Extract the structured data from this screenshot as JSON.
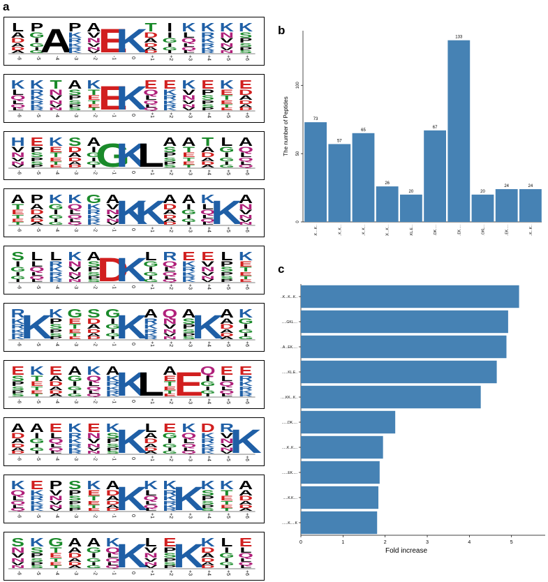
{
  "panels": {
    "a": "a",
    "b": "b",
    "c": "c"
  },
  "logo_positions": [
    "-6",
    "-5",
    "-4",
    "-3",
    "-2",
    "-1",
    "0",
    "+1",
    "+2",
    "+3",
    "+4",
    "+5",
    "+6"
  ],
  "logos": [
    {
      "big": {
        "-1": "E",
        "0": "K",
        "-4": "A"
      },
      "tops": [
        "L",
        "P",
        "A",
        "P",
        "A",
        "E",
        "K",
        "T",
        "I",
        "K",
        "K",
        "K",
        "K"
      ]
    },
    {
      "big": {
        "-1": "E",
        "0": "K"
      },
      "tops": [
        "K",
        "K",
        "T",
        "A",
        "K",
        "E",
        "K",
        "E",
        "E",
        "K",
        "E",
        "K",
        "E"
      ]
    },
    {
      "big": {
        "-1": "G",
        "0": "K",
        "+1": "L"
      },
      "tops": [
        "H",
        "E",
        "K",
        "S",
        "A",
        "G",
        "K",
        "L",
        "A",
        "A",
        "T",
        "L",
        "A"
      ]
    },
    {
      "big": {
        "0": "K",
        "+1": "K",
        "+5": "K"
      },
      "tops": [
        "A",
        "P",
        "K",
        "K",
        "G",
        "A",
        "K",
        "K",
        "A",
        "A",
        "K",
        "K",
        "A"
      ]
    },
    {
      "big": {
        "-1": "D",
        "0": "K"
      },
      "tops": [
        "S",
        "L",
        "L",
        "K",
        "A",
        "D",
        "K",
        "L",
        "R",
        "E",
        "E",
        "L",
        "K"
      ]
    },
    {
      "big": {
        "-5": "K",
        "0": "K",
        "+4": "K"
      },
      "tops": [
        "R",
        "K",
        "K",
        "G",
        "S",
        "G",
        "K",
        "A",
        "Q",
        "A",
        "K",
        "A",
        "K"
      ]
    },
    {
      "big": {
        "0": "K",
        "+1": "L",
        "+3": "E"
      },
      "tops": [
        "E",
        "K",
        "E",
        "A",
        "K",
        "A",
        "K",
        "L",
        "A",
        "E",
        "Q",
        "E",
        "E"
      ]
    },
    {
      "big": {
        "0": "K",
        "+6": "K"
      },
      "tops": [
        "A",
        "A",
        "E",
        "K",
        "E",
        "K",
        "K",
        "L",
        "E",
        "K",
        "D",
        "R",
        "K"
      ]
    },
    {
      "big": {
        "0": "K",
        "+3": "K"
      },
      "tops": [
        "K",
        "E",
        "P",
        "S",
        "K",
        "A",
        "K",
        "K",
        "K",
        "G",
        "K",
        "K",
        "A"
      ]
    },
    {
      "big": {
        "0": "K",
        "+3": "K"
      },
      "tops": [
        "S",
        "K",
        "G",
        "A",
        "A",
        "K",
        "K",
        "L",
        "E",
        "K",
        "K",
        "L",
        "E"
      ]
    }
  ],
  "chart_data": [
    {
      "type": "bar",
      "title": "",
      "xlabel": "",
      "ylabel": "The number of Peptides",
      "categories": [
        "...K....K..",
        "....K..K...",
        "...K..K...",
        "...KK...K...",
        ".....KL.E...",
        "......DK.....",
        "......EK.....",
        ".....GKL...",
        "..A...EK.....",
        "..K....K...K.."
      ],
      "values": [
        73,
        57,
        65,
        26,
        20,
        67,
        133,
        20,
        24,
        24
      ],
      "data_labels": [
        "73",
        "57",
        "65",
        "26",
        "20",
        "67",
        "133",
        "20",
        "24",
        "24"
      ],
      "ylim": [
        0,
        140
      ],
      "yticks": [
        0,
        50,
        100
      ],
      "grid": false
    },
    {
      "type": "bar",
      "orientation": "horizontal",
      "title": "",
      "xlabel": "Fold increase",
      "ylabel": "",
      "categories": [
        "..K...K...K..",
        ".....GKL....",
        "..A...EK.....",
        "......KL.E..",
        ".....KK...K..",
        "......DK.....",
        ".....K..K....",
        "......EK.....",
        ".....K.K....",
        "......K.....K"
      ],
      "values": [
        5.18,
        4.92,
        4.88,
        4.65,
        4.27,
        2.24,
        1.95,
        1.87,
        1.84,
        1.81
      ],
      "xlim": [
        0,
        5.8
      ],
      "xticks": [
        0,
        1,
        2,
        3,
        4,
        5
      ],
      "grid": false
    }
  ],
  "colors": {
    "bar": "#4682b4",
    "K": "#1f5fa6",
    "R": "#1f5fa6",
    "H": "#1f5fa6",
    "D": "#d11f1f",
    "E": "#d11f1f",
    "G": "#1a8a2a",
    "S": "#1a8a2a",
    "T": "#1a8a2a",
    "Y": "#1a8a2a",
    "C": "#1a8a2a",
    "Q": "#b0207a",
    "N": "#b0207a",
    "A": "#000000",
    "L": "#000000",
    "V": "#000000",
    "I": "#000000",
    "P": "#000000",
    "F": "#000000",
    "M": "#000000",
    "W": "#000000"
  }
}
